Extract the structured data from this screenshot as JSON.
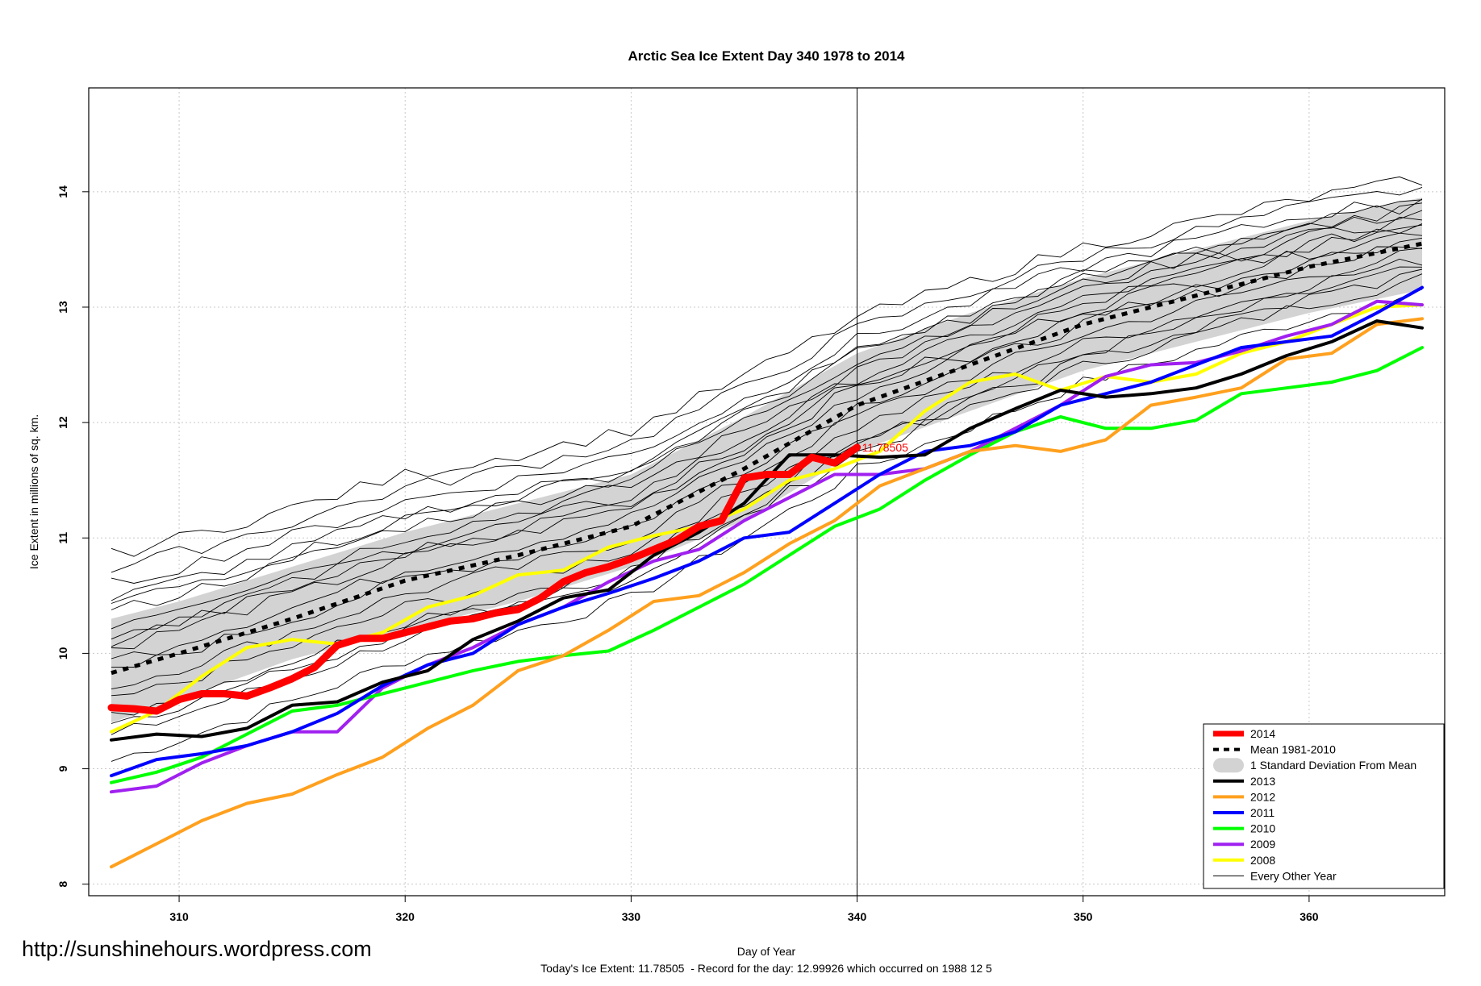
{
  "chart_data": {
    "type": "line",
    "title": "Arctic Sea Ice Extent Day 340 1978 to 2014",
    "xlabel": "Day of Year",
    "ylabel": "Ice Extent in millions of sq. km.",
    "xlim": [
      306,
      366
    ],
    "ylim": [
      7.9,
      14.9
    ],
    "x_ticks": [
      310,
      320,
      330,
      340,
      350,
      360
    ],
    "y_ticks": [
      8,
      9,
      10,
      11,
      12,
      13,
      14
    ],
    "grid": true,
    "legend_position": "bottom-right",
    "vline_x": 340,
    "annotation": {
      "text": "11.78505",
      "x": 340,
      "y": 11.785,
      "color": "#ff0000"
    },
    "site_url": "http://sunshinehours.wordpress.com",
    "footer": "Today's Ice Extent: 11.78505  - Record for the day: 12.99926 which occurred on 1988 12 5",
    "legend": [
      {
        "label": "2014",
        "color": "#ff0000",
        "style": "thick"
      },
      {
        "label": "Mean 1981-2010",
        "color": "#000000",
        "style": "dashed"
      },
      {
        "label": "1 Standard Deviation From Mean",
        "color": "#d3d3d3",
        "style": "band"
      },
      {
        "label": "2013",
        "color": "#000000",
        "style": "line"
      },
      {
        "label": "2012",
        "color": "#ffa01e",
        "style": "line"
      },
      {
        "label": "2011",
        "color": "#0000ff",
        "style": "line"
      },
      {
        "label": "2010",
        "color": "#00ff00",
        "style": "line"
      },
      {
        "label": "2009",
        "color": "#a020f0",
        "style": "line"
      },
      {
        "label": "2008",
        "color": "#ffff00",
        "style": "line"
      },
      {
        "label": "Every Other Year",
        "color": "#000000",
        "style": "thin"
      }
    ],
    "mean": {
      "x": [
        307,
        310,
        315,
        320,
        325,
        330,
        335,
        340,
        345,
        350,
        355,
        360,
        365
      ],
      "y": [
        9.83,
        10.0,
        10.3,
        10.63,
        10.85,
        11.1,
        11.6,
        12.15,
        12.5,
        12.85,
        13.1,
        13.35,
        13.55
      ]
    },
    "std_band": {
      "x": [
        307,
        310,
        315,
        320,
        325,
        330,
        335,
        340,
        345,
        350,
        355,
        360,
        365
      ],
      "lower": [
        9.4,
        9.6,
        9.95,
        10.2,
        10.45,
        10.75,
        11.15,
        11.75,
        12.1,
        12.45,
        12.7,
        12.95,
        13.15
      ],
      "upper": [
        10.3,
        10.45,
        10.75,
        11.05,
        11.3,
        11.55,
        12.05,
        12.6,
        12.95,
        13.25,
        13.5,
        13.75,
        13.95
      ]
    },
    "series": [
      {
        "name": "2008",
        "color": "#ffff00",
        "x": [
          307,
          309,
          311,
          313,
          315,
          317,
          319,
          321,
          323,
          325,
          327,
          329,
          331,
          333,
          335,
          337,
          339,
          341,
          343,
          345,
          347,
          349,
          351,
          353,
          355,
          357,
          359,
          361,
          363,
          365
        ],
        "y": [
          9.32,
          9.5,
          9.8,
          10.05,
          10.12,
          10.08,
          10.18,
          10.4,
          10.5,
          10.68,
          10.72,
          10.92,
          11.02,
          11.1,
          11.25,
          11.5,
          11.6,
          11.75,
          12.1,
          12.35,
          12.42,
          12.28,
          12.4,
          12.35,
          12.42,
          12.6,
          12.7,
          12.85,
          13.0,
          13.02
        ]
      },
      {
        "name": "2009",
        "color": "#a020f0",
        "x": [
          307,
          309,
          311,
          313,
          315,
          317,
          319,
          321,
          323,
          325,
          327,
          329,
          331,
          333,
          335,
          337,
          339,
          341,
          343,
          345,
          347,
          349,
          351,
          353,
          355,
          357,
          359,
          361,
          363,
          365
        ],
        "y": [
          8.8,
          8.85,
          9.05,
          9.2,
          9.32,
          9.32,
          9.7,
          9.9,
          10.05,
          10.25,
          10.4,
          10.62,
          10.8,
          10.9,
          11.15,
          11.35,
          11.55,
          11.55,
          11.6,
          11.75,
          11.95,
          12.15,
          12.4,
          12.5,
          12.52,
          12.62,
          12.75,
          12.85,
          13.05,
          13.02
        ]
      },
      {
        "name": "2010",
        "color": "#00ff00",
        "x": [
          307,
          309,
          311,
          313,
          315,
          317,
          319,
          321,
          323,
          325,
          327,
          329,
          331,
          333,
          335,
          337,
          339,
          341,
          343,
          345,
          347,
          349,
          351,
          353,
          355,
          357,
          359,
          361,
          363,
          365
        ],
        "y": [
          8.88,
          8.97,
          9.1,
          9.3,
          9.5,
          9.55,
          9.65,
          9.75,
          9.85,
          9.93,
          9.98,
          10.02,
          10.2,
          10.4,
          10.6,
          10.85,
          11.1,
          11.25,
          11.5,
          11.72,
          11.92,
          12.05,
          11.95,
          11.95,
          12.02,
          12.25,
          12.3,
          12.35,
          12.45,
          12.65
        ]
      },
      {
        "name": "2011",
        "color": "#0000ff",
        "x": [
          307,
          309,
          311,
          313,
          315,
          317,
          319,
          321,
          323,
          325,
          327,
          329,
          331,
          333,
          335,
          337,
          339,
          341,
          343,
          345,
          347,
          349,
          351,
          353,
          355,
          357,
          359,
          361,
          363,
          365
        ],
        "y": [
          8.94,
          9.08,
          9.13,
          9.2,
          9.32,
          9.48,
          9.72,
          9.9,
          10.0,
          10.25,
          10.4,
          10.52,
          10.65,
          10.8,
          11.0,
          11.05,
          11.3,
          11.55,
          11.75,
          11.8,
          11.92,
          12.15,
          12.25,
          12.35,
          12.5,
          12.65,
          12.7,
          12.75,
          12.95,
          13.17
        ]
      },
      {
        "name": "2012",
        "color": "#ffa01e",
        "x": [
          307,
          309,
          311,
          313,
          315,
          317,
          319,
          321,
          323,
          325,
          327,
          329,
          331,
          333,
          335,
          337,
          339,
          341,
          343,
          345,
          347,
          349,
          351,
          353,
          355,
          357,
          359,
          361,
          363,
          365
        ],
        "y": [
          8.15,
          8.35,
          8.55,
          8.7,
          8.78,
          8.95,
          9.1,
          9.35,
          9.55,
          9.85,
          9.98,
          10.2,
          10.45,
          10.5,
          10.7,
          10.95,
          11.15,
          11.45,
          11.6,
          11.75,
          11.8,
          11.75,
          11.85,
          12.15,
          12.22,
          12.3,
          12.55,
          12.6,
          12.85,
          12.9
        ]
      },
      {
        "name": "2013",
        "color": "#000000",
        "x": [
          307,
          309,
          311,
          313,
          315,
          317,
          319,
          321,
          323,
          325,
          327,
          329,
          331,
          333,
          335,
          337,
          339,
          341,
          343,
          345,
          347,
          349,
          351,
          353,
          355,
          357,
          359,
          361,
          363,
          365
        ],
        "y": [
          9.25,
          9.3,
          9.28,
          9.35,
          9.55,
          9.58,
          9.75,
          9.85,
          10.12,
          10.28,
          10.48,
          10.55,
          10.85,
          11.05,
          11.3,
          11.72,
          11.72,
          11.7,
          11.72,
          11.95,
          12.12,
          12.28,
          12.22,
          12.25,
          12.3,
          12.42,
          12.58,
          12.7,
          12.88,
          12.82
        ]
      },
      {
        "name": "2014",
        "color": "#ff0000",
        "x": [
          307,
          308,
          309,
          310,
          311,
          312,
          313,
          314,
          315,
          316,
          317,
          318,
          319,
          320,
          321,
          322,
          323,
          324,
          325,
          326,
          327,
          328,
          329,
          330,
          331,
          332,
          333,
          334,
          335,
          336,
          337,
          338,
          339,
          340
        ],
        "y": [
          9.53,
          9.52,
          9.5,
          9.6,
          9.65,
          9.65,
          9.63,
          9.7,
          9.78,
          9.88,
          10.07,
          10.13,
          10.13,
          10.18,
          10.23,
          10.28,
          10.3,
          10.35,
          10.38,
          10.48,
          10.62,
          10.7,
          10.75,
          10.82,
          10.9,
          10.98,
          11.1,
          11.15,
          11.52,
          11.55,
          11.55,
          11.7,
          11.65,
          11.785
        ]
      }
    ]
  }
}
